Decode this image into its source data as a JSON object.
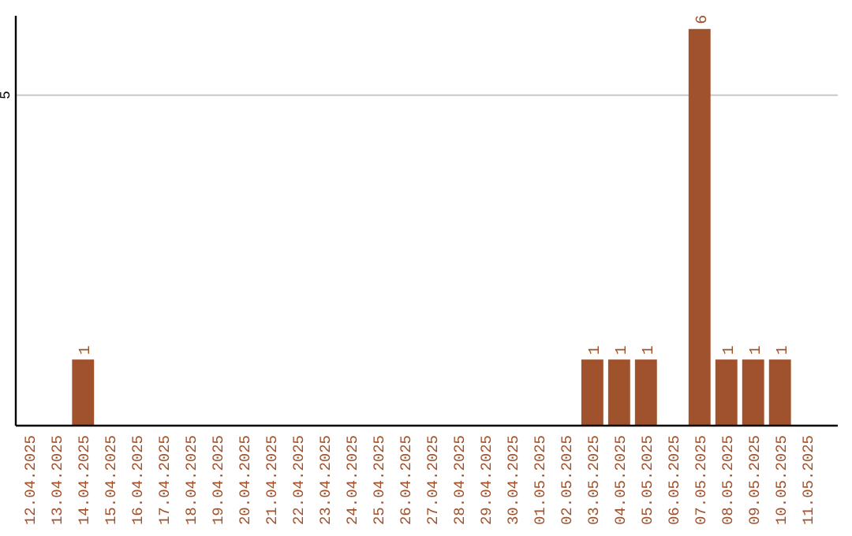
{
  "chart_data": {
    "type": "bar",
    "categories": [
      "12.04.2025",
      "13.04.2025",
      "14.04.2025",
      "15.04.2025",
      "16.04.2025",
      "17.04.2025",
      "18.04.2025",
      "19.04.2025",
      "20.04.2025",
      "21.04.2025",
      "22.04.2025",
      "23.04.2025",
      "24.04.2025",
      "25.04.2025",
      "26.04.2025",
      "27.04.2025",
      "28.04.2025",
      "29.04.2025",
      "30.04.2025",
      "01.05.2025",
      "02.05.2025",
      "03.05.2025",
      "04.05.2025",
      "05.05.2025",
      "06.05.2025",
      "07.05.2025",
      "08.05.2025",
      "09.05.2025",
      "10.05.2025",
      "11.05.2025"
    ],
    "values": [
      0,
      0,
      1,
      0,
      0,
      0,
      0,
      0,
      0,
      0,
      0,
      0,
      0,
      0,
      0,
      0,
      0,
      0,
      0,
      0,
      0,
      1,
      1,
      1,
      0,
      6,
      1,
      1,
      1,
      0
    ],
    "value_labels": [
      null,
      null,
      "1",
      null,
      null,
      null,
      null,
      null,
      null,
      null,
      null,
      null,
      null,
      null,
      null,
      null,
      null,
      null,
      null,
      null,
      null,
      "1",
      "1",
      "1",
      null,
      "6",
      "1",
      "1",
      "1",
      null
    ],
    "color": "#a0522d",
    "ylim": [
      0,
      6.2
    ],
    "yticks": [
      5
    ],
    "grid": "y"
  }
}
